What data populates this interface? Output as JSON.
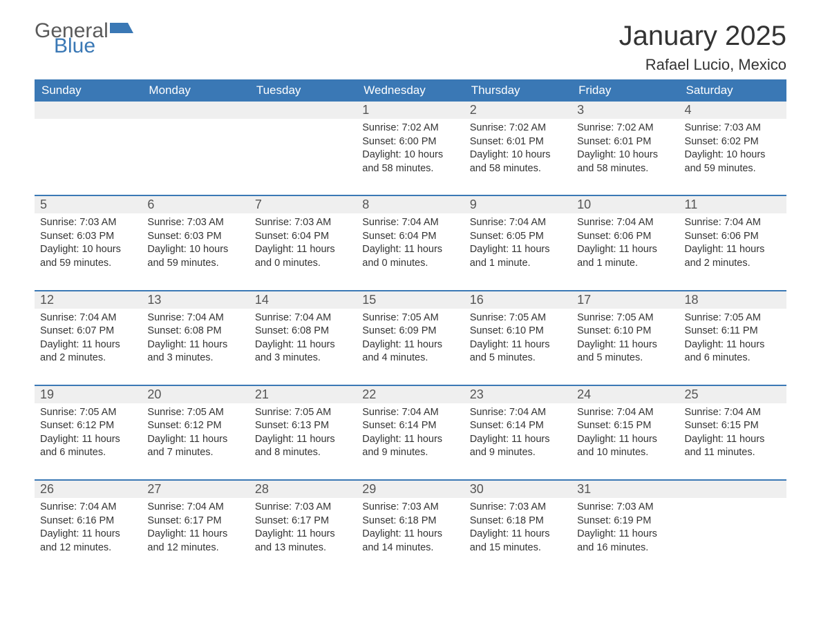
{
  "logo": {
    "word1": "General",
    "word2": "Blue",
    "accent_color": "#3a78b5",
    "gray_color": "#5a5a5a"
  },
  "title": "January 2025",
  "location": "Rafael Lucio, Mexico",
  "colors": {
    "header_bg": "#3a78b5",
    "header_text": "#ffffff",
    "daynum_bg": "#efefef",
    "body_text": "#333333",
    "rule": "#3a78b5",
    "page_bg": "#ffffff"
  },
  "weekdays": [
    "Sunday",
    "Monday",
    "Tuesday",
    "Wednesday",
    "Thursday",
    "Friday",
    "Saturday"
  ],
  "weeks": [
    [
      null,
      null,
      null,
      {
        "n": "1",
        "sunrise": "7:02 AM",
        "sunset": "6:00 PM",
        "dl": "10 hours and 58 minutes."
      },
      {
        "n": "2",
        "sunrise": "7:02 AM",
        "sunset": "6:01 PM",
        "dl": "10 hours and 58 minutes."
      },
      {
        "n": "3",
        "sunrise": "7:02 AM",
        "sunset": "6:01 PM",
        "dl": "10 hours and 58 minutes."
      },
      {
        "n": "4",
        "sunrise": "7:03 AM",
        "sunset": "6:02 PM",
        "dl": "10 hours and 59 minutes."
      }
    ],
    [
      {
        "n": "5",
        "sunrise": "7:03 AM",
        "sunset": "6:03 PM",
        "dl": "10 hours and 59 minutes."
      },
      {
        "n": "6",
        "sunrise": "7:03 AM",
        "sunset": "6:03 PM",
        "dl": "10 hours and 59 minutes."
      },
      {
        "n": "7",
        "sunrise": "7:03 AM",
        "sunset": "6:04 PM",
        "dl": "11 hours and 0 minutes."
      },
      {
        "n": "8",
        "sunrise": "7:04 AM",
        "sunset": "6:04 PM",
        "dl": "11 hours and 0 minutes."
      },
      {
        "n": "9",
        "sunrise": "7:04 AM",
        "sunset": "6:05 PM",
        "dl": "11 hours and 1 minute."
      },
      {
        "n": "10",
        "sunrise": "7:04 AM",
        "sunset": "6:06 PM",
        "dl": "11 hours and 1 minute."
      },
      {
        "n": "11",
        "sunrise": "7:04 AM",
        "sunset": "6:06 PM",
        "dl": "11 hours and 2 minutes."
      }
    ],
    [
      {
        "n": "12",
        "sunrise": "7:04 AM",
        "sunset": "6:07 PM",
        "dl": "11 hours and 2 minutes."
      },
      {
        "n": "13",
        "sunrise": "7:04 AM",
        "sunset": "6:08 PM",
        "dl": "11 hours and 3 minutes."
      },
      {
        "n": "14",
        "sunrise": "7:04 AM",
        "sunset": "6:08 PM",
        "dl": "11 hours and 3 minutes."
      },
      {
        "n": "15",
        "sunrise": "7:05 AM",
        "sunset": "6:09 PM",
        "dl": "11 hours and 4 minutes."
      },
      {
        "n": "16",
        "sunrise": "7:05 AM",
        "sunset": "6:10 PM",
        "dl": "11 hours and 5 minutes."
      },
      {
        "n": "17",
        "sunrise": "7:05 AM",
        "sunset": "6:10 PM",
        "dl": "11 hours and 5 minutes."
      },
      {
        "n": "18",
        "sunrise": "7:05 AM",
        "sunset": "6:11 PM",
        "dl": "11 hours and 6 minutes."
      }
    ],
    [
      {
        "n": "19",
        "sunrise": "7:05 AM",
        "sunset": "6:12 PM",
        "dl": "11 hours and 6 minutes."
      },
      {
        "n": "20",
        "sunrise": "7:05 AM",
        "sunset": "6:12 PM",
        "dl": "11 hours and 7 minutes."
      },
      {
        "n": "21",
        "sunrise": "7:05 AM",
        "sunset": "6:13 PM",
        "dl": "11 hours and 8 minutes."
      },
      {
        "n": "22",
        "sunrise": "7:04 AM",
        "sunset": "6:14 PM",
        "dl": "11 hours and 9 minutes."
      },
      {
        "n": "23",
        "sunrise": "7:04 AM",
        "sunset": "6:14 PM",
        "dl": "11 hours and 9 minutes."
      },
      {
        "n": "24",
        "sunrise": "7:04 AM",
        "sunset": "6:15 PM",
        "dl": "11 hours and 10 minutes."
      },
      {
        "n": "25",
        "sunrise": "7:04 AM",
        "sunset": "6:15 PM",
        "dl": "11 hours and 11 minutes."
      }
    ],
    [
      {
        "n": "26",
        "sunrise": "7:04 AM",
        "sunset": "6:16 PM",
        "dl": "11 hours and 12 minutes."
      },
      {
        "n": "27",
        "sunrise": "7:04 AM",
        "sunset": "6:17 PM",
        "dl": "11 hours and 12 minutes."
      },
      {
        "n": "28",
        "sunrise": "7:03 AM",
        "sunset": "6:17 PM",
        "dl": "11 hours and 13 minutes."
      },
      {
        "n": "29",
        "sunrise": "7:03 AM",
        "sunset": "6:18 PM",
        "dl": "11 hours and 14 minutes."
      },
      {
        "n": "30",
        "sunrise": "7:03 AM",
        "sunset": "6:18 PM",
        "dl": "11 hours and 15 minutes."
      },
      {
        "n": "31",
        "sunrise": "7:03 AM",
        "sunset": "6:19 PM",
        "dl": "11 hours and 16 minutes."
      },
      null
    ]
  ],
  "labels": {
    "sunrise": "Sunrise:",
    "sunset": "Sunset:",
    "daylight": "Daylight:"
  }
}
